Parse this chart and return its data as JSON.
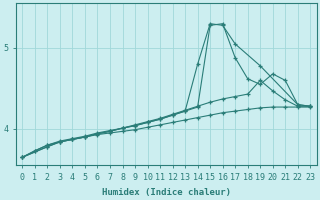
{
  "xlabel": "Humidex (Indice chaleur)",
  "bg_color": "#cceef0",
  "line_color": "#2a7d78",
  "grid_color": "#a0d8da",
  "xlim": [
    -0.5,
    23.5
  ],
  "ylim": [
    3.55,
    5.55
  ],
  "yticks": [
    4,
    5
  ],
  "xticks": [
    0,
    1,
    2,
    3,
    4,
    5,
    6,
    7,
    8,
    9,
    10,
    11,
    12,
    13,
    14,
    15,
    16,
    17,
    18,
    19,
    20,
    21,
    22,
    23
  ],
  "series": [
    {
      "x": [
        0,
        1,
        2,
        3,
        4,
        5,
        6,
        7,
        8,
        9,
        10,
        11,
        12,
        13,
        14,
        15,
        16,
        17,
        18,
        19,
        20,
        21,
        22,
        23
      ],
      "y": [
        3.65,
        3.73,
        3.8,
        3.84,
        3.87,
        3.9,
        3.93,
        3.95,
        3.97,
        3.99,
        4.02,
        4.05,
        4.08,
        4.11,
        4.14,
        4.17,
        4.2,
        4.22,
        4.24,
        4.26,
        4.27,
        4.27,
        4.27,
        4.27
      ]
    },
    {
      "x": [
        0,
        1,
        2,
        3,
        4,
        5,
        6,
        7,
        8,
        9,
        10,
        11,
        12,
        13,
        14,
        15,
        16,
        17,
        18,
        19,
        20,
        21,
        22,
        23
      ],
      "y": [
        3.65,
        3.73,
        3.8,
        3.85,
        3.88,
        3.91,
        3.95,
        3.98,
        4.01,
        4.05,
        4.09,
        4.13,
        4.18,
        4.23,
        4.28,
        4.33,
        4.37,
        4.4,
        4.43,
        4.6,
        4.47,
        4.36,
        4.28,
        4.28
      ]
    },
    {
      "x": [
        0,
        2,
        3,
        4,
        5,
        6,
        7,
        8,
        9,
        10,
        11,
        12,
        13,
        14,
        15,
        16,
        17,
        18,
        19,
        20,
        21,
        22,
        23
      ],
      "y": [
        3.65,
        3.78,
        3.84,
        3.87,
        3.9,
        3.94,
        3.97,
        4.01,
        4.04,
        4.08,
        4.12,
        4.17,
        4.22,
        4.27,
        5.28,
        5.3,
        4.88,
        4.62,
        4.55,
        4.68,
        4.6,
        4.3,
        4.28
      ]
    },
    {
      "x": [
        0,
        2,
        3,
        4,
        5,
        6,
        7,
        8,
        9,
        10,
        11,
        12,
        13,
        14,
        15,
        16,
        17,
        19,
        22,
        23
      ],
      "y": [
        3.65,
        3.78,
        3.84,
        3.87,
        3.9,
        3.94,
        3.97,
        4.01,
        4.04,
        4.08,
        4.12,
        4.17,
        4.22,
        4.8,
        5.3,
        5.28,
        5.05,
        4.78,
        4.3,
        4.28
      ]
    }
  ]
}
